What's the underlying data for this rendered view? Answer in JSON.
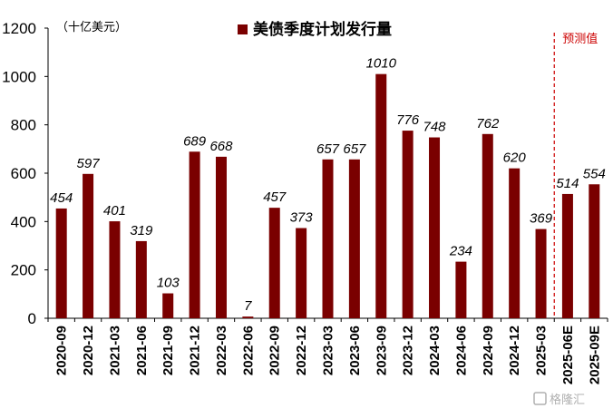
{
  "chart_data": {
    "type": "bar",
    "unit_label": "（十亿美元）",
    "legend": "美债季度计划发行量",
    "forecast_label": "预测值",
    "categories": [
      "2020-09",
      "2020-12",
      "2021-03",
      "2021-06",
      "2021-09",
      "2021-12",
      "2022-03",
      "2022-06",
      "2022-09",
      "2022-12",
      "2023-03",
      "2023-06",
      "2023-09",
      "2023-12",
      "2024-03",
      "2024-06",
      "2024-09",
      "2024-12",
      "2025-03",
      "2025-06E",
      "2025-09E"
    ],
    "series": [
      {
        "name": "美债季度计划发行量",
        "values": [
          454,
          597,
          401,
          319,
          103,
          689,
          668,
          7,
          457,
          373,
          657,
          657,
          1010,
          776,
          748,
          234,
          762,
          620,
          369,
          514,
          554
        ]
      }
    ],
    "ylim": [
      0,
      1200
    ],
    "yticks": [
      0,
      200,
      400,
      600,
      800,
      1000,
      1200
    ],
    "forecast_start_index": 19,
    "grid": false,
    "legend_position": "top-center",
    "bar_color": "#7a0000",
    "forecast_line_color": "#cc0000"
  },
  "watermark": "格隆汇"
}
